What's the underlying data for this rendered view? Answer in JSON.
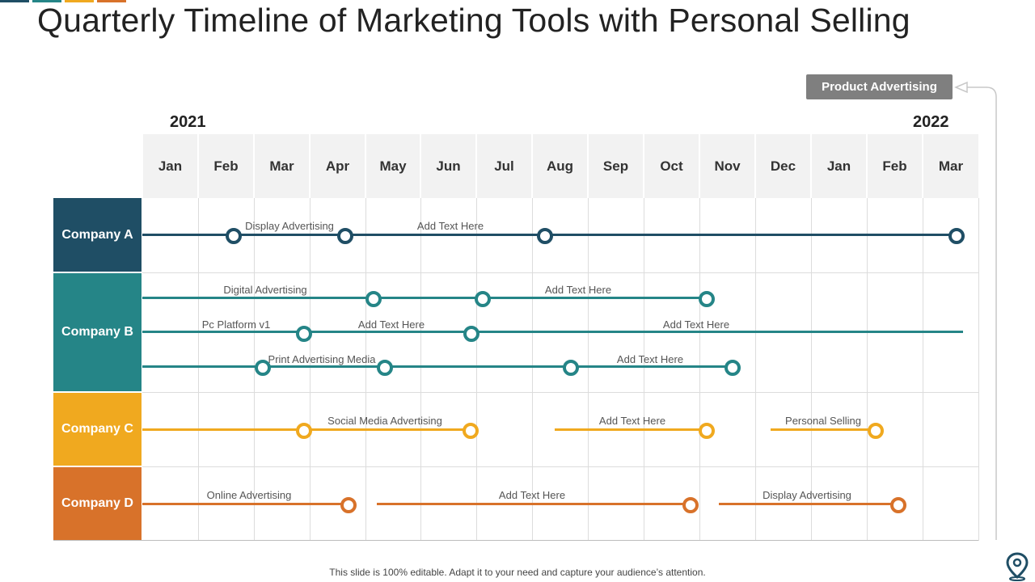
{
  "title": "Quarterly Timeline of Marketing Tools with Personal Selling",
  "years": {
    "start": "2021",
    "end": "2022"
  },
  "callout": "Product Advertising",
  "months": [
    "Jan",
    "Feb",
    "Mar",
    "Apr",
    "May",
    "Jun",
    "Jul",
    "Aug",
    "Sep",
    "Oct",
    "Nov",
    "Dec",
    "Jan",
    "Feb",
    "Mar"
  ],
  "companies": [
    {
      "name": "Company A",
      "color": "#1f4e65"
    },
    {
      "name": "Company B",
      "color": "#258587"
    },
    {
      "name": "Company C",
      "color": "#f0a91f"
    },
    {
      "name": "Company D",
      "color": "#d8722a"
    }
  ],
  "labels": {
    "a1": "Display Advertising",
    "a2": "Add Text Here",
    "b1": "Digital Advertising",
    "b2": "Add Text Here",
    "b3": "Pc Platform v1",
    "b4": "Add Text Here",
    "b5": "Add Text Here",
    "b6": "Print Advertising Media",
    "b7": "Add Text Here",
    "c1": "Social Media Advertising",
    "c2": "Add Text Here",
    "c3": "Personal Selling",
    "d1": "Online Advertising",
    "d2": "Add Text Here",
    "d3": "Display Advertising"
  },
  "colors": {
    "accent_bars": [
      "#1f4e65",
      "#258587",
      "#f0a91f",
      "#d8722a"
    ],
    "company_a_line": "#1f4e65",
    "company_b_line": "#258587",
    "company_c_line": "#f0a91f",
    "company_d_line": "#d8722a",
    "callout_bg": "#7f7f7f"
  },
  "footer": "This slide is 100% editable. Adapt it to your need and capture your audience’s attention."
}
